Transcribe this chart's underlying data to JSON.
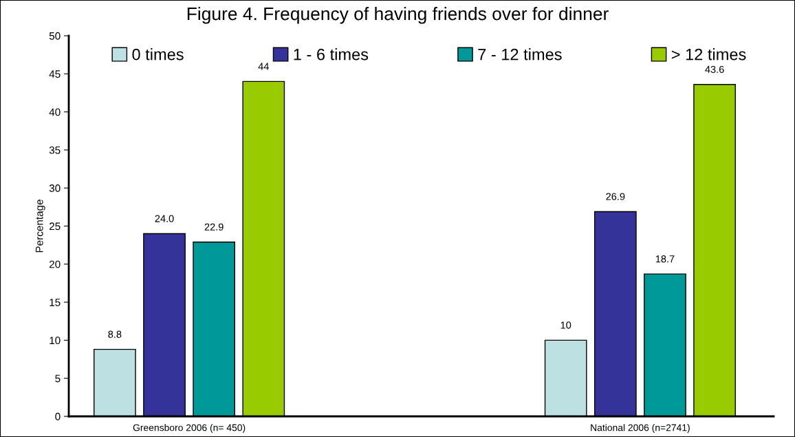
{
  "chart_data": {
    "type": "bar",
    "title": "Figure 4. Frequency of having friends over for dinner",
    "ylabel": "Percentage",
    "categories": [
      "Greensboro 2006 (n= 450)",
      "National 2006 (n=2741)"
    ],
    "series": [
      {
        "name": "0 times",
        "color": "#bde0e3",
        "values": [
          8.8,
          10
        ],
        "value_labels": [
          "8.8",
          "10"
        ]
      },
      {
        "name": "1 - 6 times",
        "color": "#333399",
        "values": [
          24.0,
          26.9
        ],
        "value_labels": [
          "24.0",
          "26.9"
        ]
      },
      {
        "name": "7 - 12 times",
        "color": "#009999",
        "values": [
          22.9,
          18.7
        ],
        "value_labels": [
          "22.9",
          "18.7"
        ]
      },
      {
        "name": "> 12 times",
        "color": "#99cc00",
        "values": [
          44,
          43.6
        ],
        "value_labels": [
          "44",
          "43.6"
        ]
      }
    ],
    "ylim": [
      0,
      50
    ],
    "yticks": [
      0,
      5,
      10,
      15,
      20,
      25,
      30,
      35,
      40,
      45,
      50
    ],
    "grid": false,
    "legend": "top"
  }
}
